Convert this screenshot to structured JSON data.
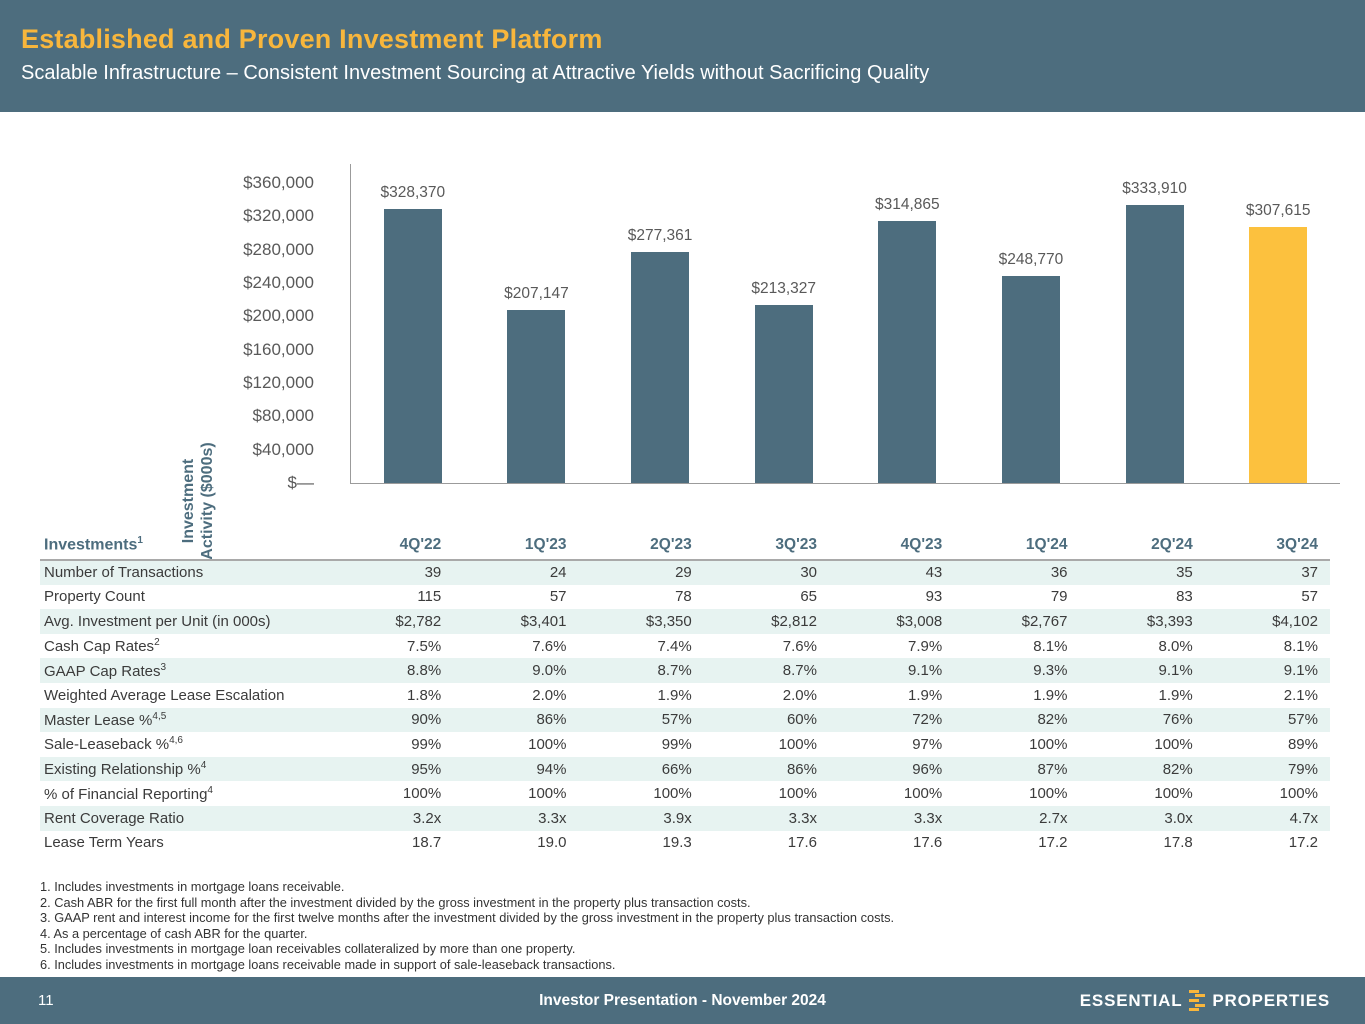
{
  "header": {
    "title": "Established and Proven Investment Platform",
    "subtitle": "Scalable Infrastructure – Consistent Investment Sourcing at Attractive Yields without Sacrificing Quality"
  },
  "chart_data": {
    "type": "bar",
    "title": "",
    "ylabel": "Investment Activity ($000s)",
    "ylabel_lines": [
      "Investment",
      "Activity ($000s)"
    ],
    "categories": [
      "4Q'22",
      "1Q'23",
      "2Q'23",
      "3Q'23",
      "4Q'23",
      "1Q'24",
      "2Q'24",
      "3Q'24"
    ],
    "values": [
      328370,
      207147,
      277361,
      213327,
      314865,
      248770,
      333910,
      307615
    ],
    "value_labels": [
      "$328,370",
      "$207,147",
      "$277,361",
      "$213,327",
      "$314,865",
      "$248,770",
      "$333,910",
      "$307,615"
    ],
    "highlight_index": 7,
    "bar_color": "#4d6d7e",
    "highlight_color": "#fcc13e",
    "ylim": [
      0,
      360000
    ],
    "ytick_step": 40000,
    "ytick_labels": [
      "$—",
      "$40,000",
      "$80,000",
      "$120,000",
      "$160,000",
      "$200,000",
      "$240,000",
      "$280,000",
      "$320,000",
      "$360,000"
    ],
    "grid": false,
    "legend": false
  },
  "table": {
    "header": {
      "label": "Investments",
      "sup": "1"
    },
    "columns": [
      "4Q'22",
      "1Q'23",
      "2Q'23",
      "3Q'23",
      "4Q'23",
      "1Q'24",
      "2Q'24",
      "3Q'24"
    ],
    "rows": [
      {
        "label": "Number of Transactions",
        "sup": "",
        "values": [
          "39",
          "24",
          "29",
          "30",
          "43",
          "36",
          "35",
          "37"
        ]
      },
      {
        "label": "Property Count",
        "sup": "",
        "values": [
          "115",
          "57",
          "78",
          "65",
          "93",
          "79",
          "83",
          "57"
        ]
      },
      {
        "label": "Avg. Investment per Unit (in 000s)",
        "sup": "",
        "values": [
          "$2,782",
          "$3,401",
          "$3,350",
          "$2,812",
          "$3,008",
          "$2,767",
          "$3,393",
          "$4,102"
        ]
      },
      {
        "label": "Cash Cap Rates",
        "sup": "2",
        "values": [
          "7.5%",
          "7.6%",
          "7.4%",
          "7.6%",
          "7.9%",
          "8.1%",
          "8.0%",
          "8.1%"
        ]
      },
      {
        "label": "GAAP Cap Rates",
        "sup": "3",
        "values": [
          "8.8%",
          "9.0%",
          "8.7%",
          "8.7%",
          "9.1%",
          "9.3%",
          "9.1%",
          "9.1%"
        ]
      },
      {
        "label": "Weighted Average Lease Escalation",
        "sup": "",
        "values": [
          "1.8%",
          "2.0%",
          "1.9%",
          "2.0%",
          "1.9%",
          "1.9%",
          "1.9%",
          "2.1%"
        ]
      },
      {
        "label": "Master Lease %",
        "sup": "4,5",
        "values": [
          "90%",
          "86%",
          "57%",
          "60%",
          "72%",
          "82%",
          "76%",
          "57%"
        ]
      },
      {
        "label": "Sale-Leaseback %",
        "sup": "4,6",
        "values": [
          "99%",
          "100%",
          "99%",
          "100%",
          "97%",
          "100%",
          "100%",
          "89%"
        ]
      },
      {
        "label": "Existing Relationship %",
        "sup": "4",
        "values": [
          "95%",
          "94%",
          "66%",
          "86%",
          "96%",
          "87%",
          "82%",
          "79%"
        ]
      },
      {
        "label": "% of Financial Reporting",
        "sup": "4",
        "values": [
          "100%",
          "100%",
          "100%",
          "100%",
          "100%",
          "100%",
          "100%",
          "100%"
        ]
      },
      {
        "label": "Rent Coverage Ratio",
        "sup": "",
        "values": [
          "3.2x",
          "3.3x",
          "3.9x",
          "3.3x",
          "3.3x",
          "2.7x",
          "3.0x",
          "4.7x"
        ]
      },
      {
        "label": "Lease Term Years",
        "sup": "",
        "values": [
          "18.7",
          "19.0",
          "19.3",
          "17.6",
          "17.6",
          "17.2",
          "17.8",
          "17.2"
        ]
      }
    ]
  },
  "footnotes": [
    "1. Includes investments in mortgage loans receivable.",
    "2. Cash ABR for the first full month after the investment divided by the gross investment in the property plus transaction costs.",
    "3. GAAP rent and interest income for the first twelve months after the investment divided by the gross investment in the property plus transaction costs.",
    "4. As a percentage of cash ABR for the quarter.",
    "5. Includes investments in mortgage loan receivables collateralized by more than one property.",
    "6. Includes investments in mortgage loans receivable made in support of sale-leaseback transactions."
  ],
  "footer": {
    "page_number": "11",
    "center_text": "Investor Presentation - November 2024",
    "logo_word_left": "ESSENTIAL",
    "logo_word_right": "PROPERTIES"
  },
  "colors": {
    "header_bg": "#4d6d7e",
    "accent_gold": "#f8b63c",
    "bar_slate": "#4d6d7e",
    "bar_highlight": "#fcc13e",
    "table_stripe": "#e7f3f1",
    "table_header_text": "#4d6d7e"
  }
}
